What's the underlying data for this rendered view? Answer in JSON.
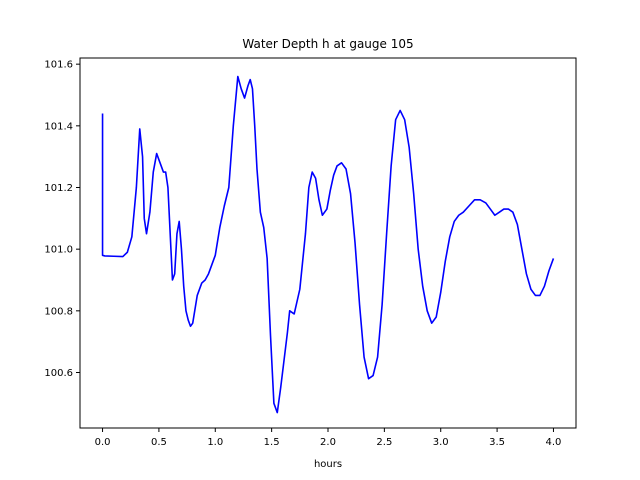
{
  "chart_data": {
    "type": "line",
    "title": "Water Depth h at gauge 105",
    "xlabel": "hours",
    "ylabel": "",
    "xlim": [
      -0.2,
      4.2
    ],
    "ylim": [
      100.42,
      101.62
    ],
    "xticks": [
      0.0,
      0.5,
      1.0,
      1.5,
      2.0,
      2.5,
      3.0,
      3.5,
      4.0
    ],
    "xtick_labels": [
      "0.0",
      "0.5",
      "1.0",
      "1.5",
      "2.0",
      "2.5",
      "3.0",
      "3.5",
      "4.0"
    ],
    "yticks": [
      100.6,
      100.8,
      101.0,
      101.2,
      101.4,
      101.6
    ],
    "ytick_labels": [
      "100.6",
      "100.8",
      "101.0",
      "101.2",
      "101.4",
      "101.6"
    ],
    "grid": false,
    "series": [
      {
        "color": "#0000ff",
        "x": [
          0.0,
          0.0,
          0.02,
          0.1,
          0.18,
          0.22,
          0.26,
          0.3,
          0.33,
          0.355,
          0.37,
          0.39,
          0.42,
          0.45,
          0.48,
          0.51,
          0.54,
          0.56,
          0.58,
          0.6,
          0.62,
          0.64,
          0.66,
          0.68,
          0.7,
          0.72,
          0.74,
          0.76,
          0.78,
          0.8,
          0.84,
          0.88,
          0.91,
          0.94,
          0.97,
          1.0,
          1.04,
          1.08,
          1.12,
          1.16,
          1.2,
          1.23,
          1.26,
          1.29,
          1.31,
          1.33,
          1.35,
          1.37,
          1.4,
          1.43,
          1.46,
          1.49,
          1.52,
          1.55,
          1.58,
          1.61,
          1.64,
          1.66,
          1.7,
          1.75,
          1.8,
          1.83,
          1.86,
          1.89,
          1.92,
          1.95,
          1.99,
          2.02,
          2.05,
          2.08,
          2.12,
          2.16,
          2.2,
          2.24,
          2.28,
          2.32,
          2.36,
          2.4,
          2.44,
          2.48,
          2.52,
          2.56,
          2.6,
          2.64,
          2.68,
          2.72,
          2.76,
          2.8,
          2.84,
          2.88,
          2.92,
          2.96,
          3.0,
          3.04,
          3.08,
          3.12,
          3.16,
          3.2,
          3.25,
          3.3,
          3.35,
          3.4,
          3.44,
          3.48,
          3.52,
          3.56,
          3.6,
          3.64,
          3.68,
          3.72,
          3.76,
          3.8,
          3.84,
          3.88,
          3.92,
          3.96,
          4.0
        ],
        "y": [
          101.44,
          100.98,
          100.978,
          100.977,
          100.976,
          100.99,
          101.04,
          101.2,
          101.39,
          101.3,
          101.1,
          101.05,
          101.12,
          101.25,
          101.31,
          101.28,
          101.25,
          101.25,
          101.2,
          101.05,
          100.9,
          100.92,
          101.05,
          101.09,
          101.0,
          100.88,
          100.8,
          100.77,
          100.75,
          100.76,
          100.85,
          100.89,
          100.9,
          100.92,
          100.95,
          100.98,
          101.07,
          101.14,
          101.2,
          101.4,
          101.56,
          101.52,
          101.49,
          101.53,
          101.55,
          101.52,
          101.4,
          101.26,
          101.12,
          101.07,
          100.97,
          100.72,
          100.5,
          100.47,
          100.55,
          100.64,
          100.73,
          100.8,
          100.79,
          100.87,
          101.05,
          101.2,
          101.25,
          101.23,
          101.16,
          101.11,
          101.13,
          101.19,
          101.24,
          101.27,
          101.28,
          101.26,
          101.18,
          101.02,
          100.82,
          100.65,
          100.58,
          100.59,
          100.65,
          100.82,
          101.05,
          101.27,
          101.42,
          101.45,
          101.42,
          101.33,
          101.18,
          101.0,
          100.88,
          100.8,
          100.76,
          100.78,
          100.86,
          100.96,
          101.04,
          101.09,
          101.11,
          101.12,
          101.14,
          101.16,
          101.16,
          101.15,
          101.13,
          101.11,
          101.12,
          101.13,
          101.13,
          101.12,
          101.08,
          101.0,
          100.92,
          100.87,
          100.85,
          100.85,
          100.88,
          100.93,
          100.97
        ]
      }
    ]
  }
}
